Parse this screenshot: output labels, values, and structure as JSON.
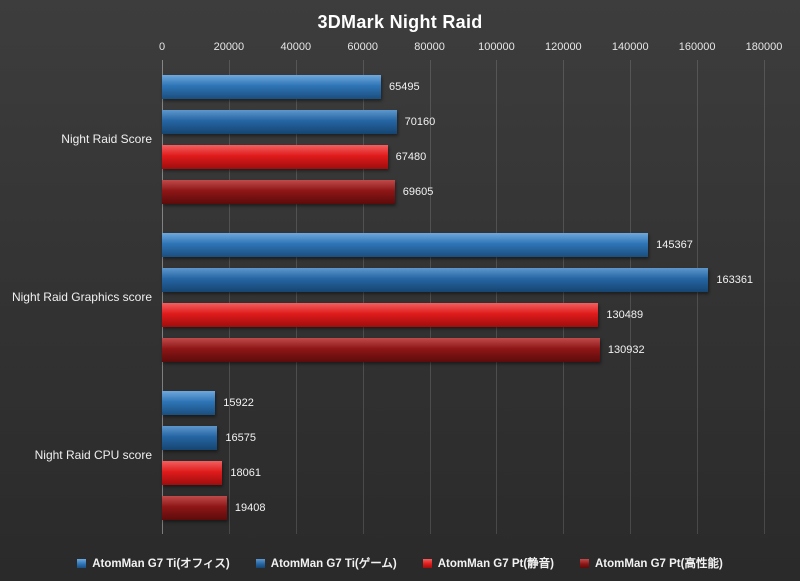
{
  "title": "3DMark Night Raid",
  "colors": {
    "background_top": "#3d3d3d",
    "background_bottom": "#2a2a2a",
    "grid": "rgba(255,255,255,0.14)",
    "text": "#eeeeee"
  },
  "chart_data": {
    "type": "bar",
    "orientation": "horizontal",
    "title": "3DMark Night Raid",
    "categories": [
      "Night Raid Score",
      "Night Raid Graphics score",
      "Night Raid CPU score"
    ],
    "series": [
      {
        "name": "AtomMan G7 Ti(オフィス)",
        "color": "#2E75B6",
        "color_light": "#6FA8DC",
        "color_dark": "#1B4E7E",
        "values": [
          65495,
          145367,
          15922
        ]
      },
      {
        "name": "AtomMan G7 Ti(ゲーム)",
        "color": "#2565A3",
        "color_light": "#5E97CC",
        "color_dark": "#164570",
        "values": [
          70160,
          163361,
          16575
        ]
      },
      {
        "name": "AtomMan G7 Pt(静音)",
        "color": "#E01B1B",
        "color_light": "#F26060",
        "color_dark": "#9E0E0E",
        "values": [
          67480,
          130489,
          18061
        ]
      },
      {
        "name": "AtomMan G7 Pt(高性能)",
        "color": "#8E1616",
        "color_light": "#C04A4A",
        "color_dark": "#5C0B0B",
        "values": [
          69605,
          130932,
          19408
        ]
      }
    ],
    "x_axis": {
      "min": 0,
      "max": 180000,
      "step": 20000
    },
    "legend_position": "bottom",
    "grid": true
  }
}
